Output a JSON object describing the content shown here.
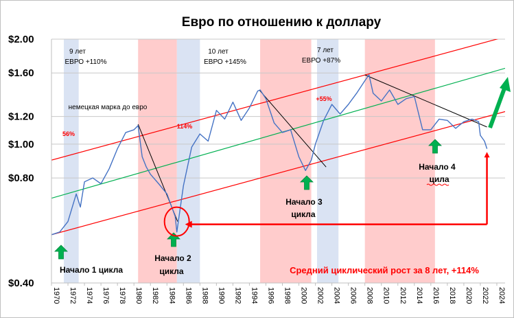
{
  "chart_data": {
    "type": "line",
    "title": "Евро по отношению к доллару",
    "y_scale": "log",
    "ylim": [
      0.4,
      2.0
    ],
    "xlim": [
      1970,
      2025
    ],
    "y_ticks": [
      "$2.00",
      "$1.60",
      "$1.20",
      "$1.00",
      "$0.80",
      "$0.40"
    ],
    "y_tick_values": [
      2.0,
      1.6,
      1.2,
      1.0,
      0.8,
      0.4
    ],
    "x_ticks": [
      "1970",
      "1972",
      "1974",
      "1976",
      "1978",
      "1980",
      "1982",
      "1984",
      "1986",
      "1988",
      "1990",
      "1992",
      "1994",
      "1996",
      "1998",
      "2000",
      "2002",
      "2004",
      "2006",
      "2008",
      "2010",
      "2012",
      "2014",
      "2016",
      "2018",
      "2020",
      "2022",
      "2024"
    ],
    "series": [
      {
        "x": [
          1970,
          1971,
          1972,
          1973,
          1973.5,
          1974,
          1975,
          1976,
          1977,
          1978,
          1979,
          1980,
          1980.5,
          1981,
          1981.5,
          1982,
          1983,
          1984,
          1985,
          1985.2,
          1986,
          1987,
          1988,
          1989,
          1990,
          1991,
          1992,
          1993,
          1994,
          1995,
          1995.3,
          1996,
          1997,
          1998,
          1999,
          2000,
          2000.8,
          2001.5,
          2002,
          2003,
          2004,
          2005,
          2006,
          2007,
          2008,
          2008.5,
          2009,
          2010,
          2011,
          2012,
          2013,
          2014,
          2015,
          2016,
          2017,
          2018,
          2019,
          2020,
          2021,
          2021.8,
          2022,
          2022.5,
          2022.8
        ],
        "y": [
          0.55,
          0.56,
          0.6,
          0.72,
          0.66,
          0.78,
          0.8,
          0.77,
          0.85,
          0.97,
          1.08,
          1.1,
          1.13,
          0.92,
          0.86,
          0.82,
          0.77,
          0.72,
          0.62,
          0.56,
          0.76,
          0.98,
          1.07,
          1.02,
          1.25,
          1.18,
          1.32,
          1.17,
          1.27,
          1.42,
          1.43,
          1.35,
          1.15,
          1.08,
          1.1,
          0.92,
          0.84,
          0.9,
          1.0,
          1.17,
          1.3,
          1.22,
          1.3,
          1.4,
          1.52,
          1.58,
          1.4,
          1.33,
          1.43,
          1.3,
          1.35,
          1.37,
          1.1,
          1.1,
          1.18,
          1.17,
          1.11,
          1.16,
          1.18,
          1.16,
          1.06,
          1.02,
          0.97
        ]
      }
    ],
    "bands_blue": [
      [
        1971.5,
        1973.3
      ],
      [
        1985.2,
        1988.0
      ],
      [
        2002.2,
        2004.8
      ]
    ],
    "bands_red": [
      [
        1980.5,
        1985.2
      ],
      [
        1995.3,
        2001.5
      ],
      [
        2008.0,
        2016.5
      ]
    ],
    "channel_upper": [
      [
        1970.0,
        0.9
      ],
      [
        2025.0,
        2.03
      ]
    ],
    "channel_mid": [
      [
        1970.0,
        0.7
      ],
      [
        2025.0,
        1.65
      ]
    ],
    "channel_lower": [
      [
        1970.0,
        0.55
      ],
      [
        2025.0,
        1.24
      ]
    ],
    "trend_lines": [
      [
        [
          1980.5,
          1.14
        ],
        [
          1985.3,
          0.6
        ]
      ],
      [
        [
          1995.2,
          1.43
        ],
        [
          2003.3,
          0.86
        ]
      ],
      [
        [
          2008.0,
          1.58
        ],
        [
          2022.8,
          1.12
        ]
      ]
    ],
    "annotations": {
      "cycle1_years": "9 лет",
      "cycle1_gain": "ЕВРО +110%",
      "cycle2_years": "10 лет",
      "cycle2_gain": "ЕВРО +145%",
      "cycle3_years": "7 лет",
      "cycle3_gain": "ЕВРО +87%",
      "dm_note": "немецкая марка до евро",
      "pct_56": "56%",
      "pct_114": "114%",
      "pct_55": "+55%",
      "start1": "Начало 1 цикла",
      "start2_a": "Начало 2",
      "start2_b": "цикла",
      "start3_a": "Начало 3",
      "start3_b": "цикла",
      "start4_a": "Начало 4",
      "start4_b": "цила",
      "footer": "Средний циклический рост за 8 лет, +114%"
    },
    "colors": {
      "line": "#4472c4",
      "band_blue": "#dae3f3",
      "band_red": "#ffcccc",
      "channel_red": "#ff0000",
      "channel_green": "#00b050",
      "arrow_green": "#00b050",
      "arrow_red": "#ff0000"
    }
  }
}
